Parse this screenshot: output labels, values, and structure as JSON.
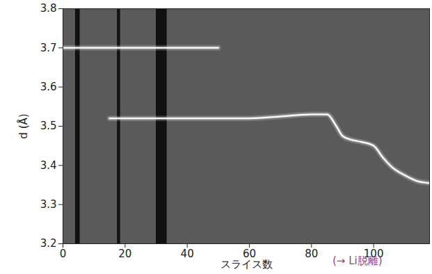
{
  "chart_data": {
    "type": "line",
    "xlabel": "スライス数",
    "ylabel": "d (Å)",
    "annotations": [
      "(→ Li脱離)"
    ],
    "xlim": [
      0,
      118
    ],
    "ylim": [
      3.2,
      3.8
    ],
    "xticks": [
      0,
      20,
      40,
      60,
      80,
      100
    ],
    "yticks": [
      3.2,
      3.3,
      3.4,
      3.5,
      3.6,
      3.7,
      3.8
    ],
    "grid": false,
    "dark_bands": [
      [
        4,
        5.5
      ],
      [
        17.5,
        18.5
      ],
      [
        30,
        33.5
      ]
    ],
    "series": [
      {
        "color": "#ffffff",
        "x": [
          0,
          10,
          20,
          30,
          40,
          50
        ],
        "values": [
          3.7,
          3.7,
          3.7,
          3.7,
          3.7,
          3.7
        ]
      },
      {
        "color": "#ffffff",
        "x": [
          15,
          20,
          30,
          40,
          50,
          60,
          70,
          80,
          85,
          88,
          90,
          93,
          96,
          100,
          103,
          106,
          110,
          114,
          118
        ],
        "values": [
          3.52,
          3.52,
          3.52,
          3.52,
          3.52,
          3.52,
          3.525,
          3.53,
          3.53,
          3.5,
          3.475,
          3.465,
          3.46,
          3.45,
          3.42,
          3.395,
          3.375,
          3.36,
          3.355
        ]
      }
    ]
  }
}
